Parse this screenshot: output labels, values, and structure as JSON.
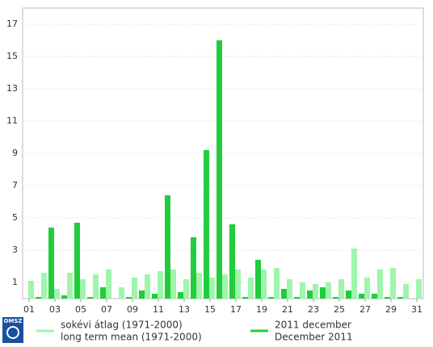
{
  "chart_data": {
    "type": "bar",
    "logo": "OMSZ",
    "categories": [
      "01",
      null,
      "03",
      null,
      "05",
      null,
      "07",
      null,
      "09",
      null,
      "11",
      null,
      "13",
      null,
      "15",
      null,
      "17",
      null,
      "19",
      null,
      "21",
      null,
      "23",
      null,
      "25",
      null,
      "27",
      null,
      "29",
      null,
      "31"
    ],
    "series": [
      {
        "name": "2011 december",
        "name_en": "December 2011",
        "color": "#22cc3c",
        "values": [
          0,
          0.1,
          4.4,
          0.2,
          4.7,
          0.1,
          0.7,
          0,
          0.1,
          0.5,
          0.3,
          6.4,
          0.4,
          3.8,
          9.2,
          16.0,
          4.6,
          0.1,
          2.4,
          0.1,
          0.6,
          0.1,
          0.5,
          0.7,
          0.1,
          0.5,
          0.3,
          0.3,
          0.1,
          0.1,
          0
        ]
      },
      {
        "name": "sokévi átlag (1971-2000)",
        "name_en": "long term mean (1971-2000)",
        "color": "#9ff5ac",
        "values": [
          1.1,
          1.6,
          0.6,
          1.6,
          1.2,
          1.5,
          1.8,
          0.7,
          1.3,
          1.5,
          1.7,
          1.8,
          1.2,
          1.6,
          1.3,
          1.5,
          1.8,
          1.3,
          1.8,
          1.9,
          1.2,
          1.0,
          0.9,
          1.0,
          1.2,
          3.1,
          1.3,
          1.8,
          1.9,
          0.9,
          1.2
        ]
      }
    ],
    "ylim": [
      0,
      18
    ],
    "yticks": [
      1,
      3,
      5,
      7,
      9,
      11,
      13,
      15,
      17
    ],
    "grid": true
  }
}
